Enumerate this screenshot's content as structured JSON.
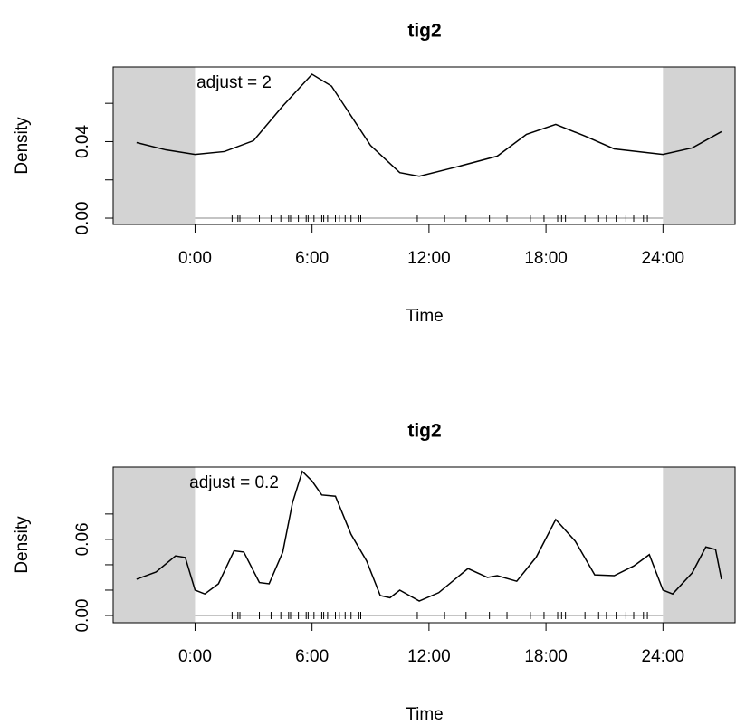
{
  "chart_data": [
    {
      "type": "line",
      "title": "tig2",
      "x_label": "Time",
      "y_label": "Density",
      "annotation": "adjust = 2",
      "x": [
        -3,
        -1.5,
        0,
        1.5,
        3,
        4.5,
        6,
        7,
        9,
        10.5,
        11.5,
        13.5,
        15.5,
        17,
        18.5,
        20,
        21.5,
        24,
        25.5,
        27
      ],
      "series": [
        {
          "color": "#000000",
          "values": [
            0.0395,
            0.0357,
            0.0333,
            0.0348,
            0.0405,
            0.0586,
            0.0752,
            0.069,
            0.038,
            0.0238,
            0.0219,
            0.027,
            0.0324,
            0.0438,
            0.049,
            0.0429,
            0.0362,
            0.0333,
            0.0367,
            0.0452
          ]
        }
      ],
      "rug": [
        1.9,
        2.2,
        2.3,
        3.3,
        3.9,
        4.4,
        4.8,
        4.9,
        5.3,
        5.7,
        5.8,
        6.1,
        6.5,
        6.6,
        6.8,
        7.2,
        7.4,
        7.7,
        8.0,
        8.4,
        8.5,
        11.4,
        12.8,
        13.9,
        15.1,
        16.0,
        17.2,
        17.9,
        18.6,
        18.8,
        19.0,
        20.0,
        20.7,
        21.1,
        21.6,
        22.1,
        22.5,
        23.0,
        23.2
      ],
      "shaded_outside": [
        0,
        24
      ],
      "xlim": [
        -4.2,
        27.7
      ],
      "xticks": [
        {
          "value": 0,
          "label": "0:00"
        },
        {
          "value": 6,
          "label": "6:00"
        },
        {
          "value": 12,
          "label": "12:00"
        },
        {
          "value": 18,
          "label": "18:00"
        },
        {
          "value": 24,
          "label": "24:00"
        }
      ],
      "ylim": [
        -0.0033,
        0.079
      ],
      "yticks": [
        {
          "value": 0,
          "label": "0.00"
        },
        {
          "value": 0.04,
          "label": "0.04"
        }
      ],
      "minor_yticks": [
        0.02,
        0.06
      ]
    },
    {
      "type": "line",
      "title": "tig2",
      "x_label": "Time",
      "y_label": "Density",
      "annotation": "adjust = 0.2",
      "x": [
        -3,
        -2,
        -1,
        -0.5,
        0,
        0.5,
        1.2,
        2,
        2.5,
        3.3,
        3.8,
        4.5,
        5,
        5.5,
        6,
        6.5,
        7.2,
        8,
        8.8,
        9.5,
        10,
        10.5,
        11.5,
        12.5,
        14,
        15,
        15.5,
        16.5,
        17.5,
        18.5,
        19.5,
        20.5,
        21.5,
        22.5,
        23.3,
        24,
        24.5,
        25.5,
        26.2,
        26.7,
        27
      ],
      "series": [
        {
          "color": "#000000",
          "values": [
            0.0286,
            0.0343,
            0.047,
            0.0457,
            0.02,
            0.017,
            0.025,
            0.051,
            0.05,
            0.026,
            0.025,
            0.05,
            0.089,
            0.1136,
            0.106,
            0.095,
            0.094,
            0.064,
            0.043,
            0.0157,
            0.014,
            0.02,
            0.0114,
            0.018,
            0.037,
            0.03,
            0.0314,
            0.027,
            0.046,
            0.0757,
            0.0586,
            0.032,
            0.0314,
            0.039,
            0.048,
            0.02,
            0.017,
            0.0336,
            0.054,
            0.052,
            0.0286
          ]
        }
      ],
      "rug": [
        1.9,
        2.2,
        2.3,
        3.3,
        3.9,
        4.4,
        4.8,
        4.9,
        5.3,
        5.7,
        5.8,
        6.1,
        6.5,
        6.6,
        6.8,
        7.2,
        7.4,
        7.7,
        8.0,
        8.4,
        8.5,
        11.4,
        12.8,
        13.9,
        15.1,
        16.0,
        17.2,
        17.9,
        18.6,
        18.8,
        19.0,
        20.0,
        20.7,
        21.1,
        21.6,
        22.1,
        22.5,
        23.0,
        23.2
      ],
      "shaded_outside": [
        0,
        24
      ],
      "xlim": [
        -4.2,
        27.7
      ],
      "xticks": [
        {
          "value": 0,
          "label": "0:00"
        },
        {
          "value": 6,
          "label": "6:00"
        },
        {
          "value": 12,
          "label": "12:00"
        },
        {
          "value": 18,
          "label": "18:00"
        },
        {
          "value": 24,
          "label": "24:00"
        }
      ],
      "ylim": [
        -0.0057,
        0.117
      ],
      "yticks": [
        {
          "value": 0,
          "label": "0.00"
        },
        {
          "value": 0.06,
          "label": "0.06"
        }
      ],
      "minor_yticks": [
        0.02,
        0.04,
        0.08
      ]
    }
  ]
}
